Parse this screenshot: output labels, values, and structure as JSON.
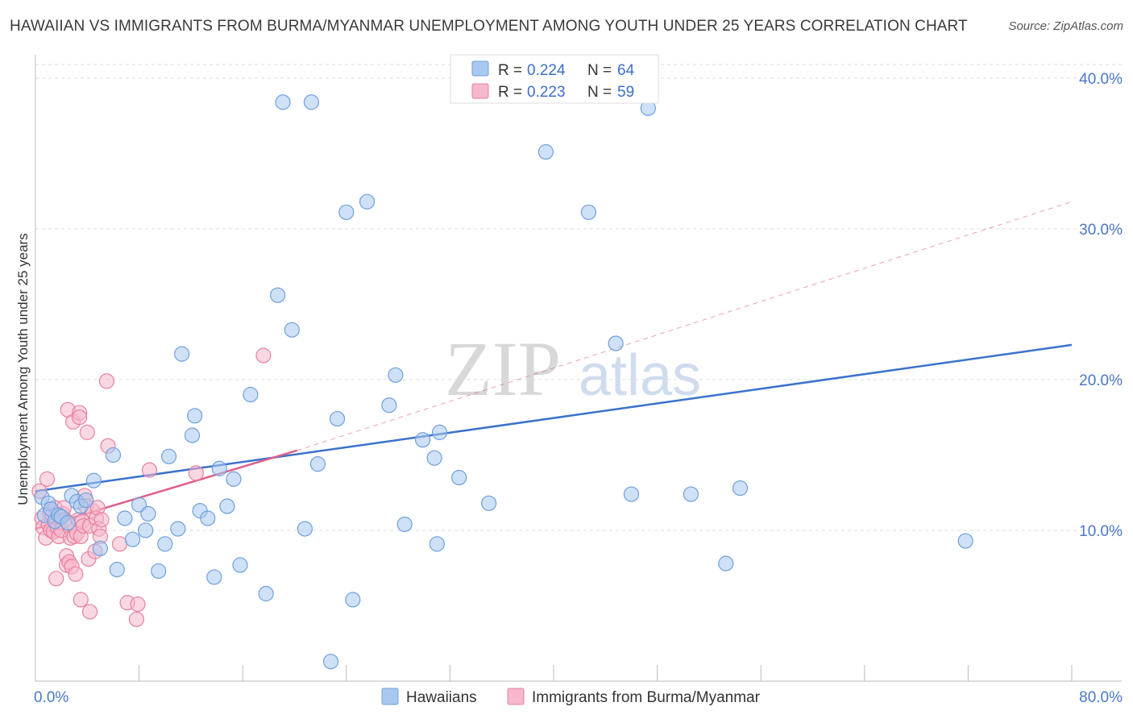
{
  "title": "HAWAIIAN VS IMMIGRANTS FROM BURMA/MYANMAR UNEMPLOYMENT AMONG YOUTH UNDER 25 YEARS CORRELATION CHART",
  "source": "Source: ZipAtlas.com",
  "watermark": {
    "zip": "ZIP",
    "atlas": "atlas"
  },
  "colors": {
    "hawaiians": "#a8c8f0",
    "hawaiians_stroke": "#6f9fdc",
    "burma": "#f5b8cc",
    "burma_stroke": "#e8809f",
    "trend_blue": "#3a72cc",
    "trend_pink": "#e05f8a",
    "grid": "#dddddd",
    "tick_text": "#4a78c8"
  },
  "legend": {
    "rows": [
      {
        "r_label": "R = ",
        "r_value": "0.224",
        "n_label": "N = ",
        "n_value": "64"
      },
      {
        "r_label": "R = ",
        "r_value": "0.223",
        "n_label": "N = ",
        "n_value": "59"
      }
    ]
  },
  "chart_data": {
    "type": "scatter",
    "title": "HAWAIIAN VS IMMIGRANTS FROM BURMA/MYANMAR UNEMPLOYMENT AMONG YOUTH UNDER 25 YEARS CORRELATION CHART",
    "xlabel": "",
    "ylabel": "Unemployment Among Youth under 25 years",
    "xlim": [
      0,
      80
    ],
    "ylim": [
      0,
      40.9
    ],
    "x_ticks": [
      {
        "value": 0,
        "label": "0.0%"
      },
      {
        "value": 80,
        "label": "80.0%"
      }
    ],
    "y_ticks": [
      {
        "value": 10,
        "label": "10.0%"
      },
      {
        "value": 20,
        "label": "20.0%"
      },
      {
        "value": 30,
        "label": "30.0%"
      },
      {
        "value": 40,
        "label": "40.0%"
      }
    ],
    "x_minor_ticks": [
      0,
      8,
      16,
      24,
      32,
      40,
      48,
      56,
      64,
      72,
      80
    ],
    "series": [
      {
        "name": "Hawaiians",
        "points": [
          [
            0.5,
            12.2
          ],
          [
            0.7,
            11.0
          ],
          [
            1.0,
            11.8
          ],
          [
            1.2,
            11.4
          ],
          [
            1.5,
            10.6
          ],
          [
            1.8,
            11.0
          ],
          [
            2.0,
            10.9
          ],
          [
            2.5,
            10.5
          ],
          [
            2.8,
            12.3
          ],
          [
            3.2,
            11.9
          ],
          [
            3.5,
            11.6
          ],
          [
            3.9,
            12.0
          ],
          [
            4.5,
            13.3
          ],
          [
            5.0,
            8.8
          ],
          [
            6.0,
            15.0
          ],
          [
            6.3,
            7.4
          ],
          [
            6.9,
            10.8
          ],
          [
            7.5,
            9.4
          ],
          [
            8.0,
            11.7
          ],
          [
            8.5,
            10.0
          ],
          [
            8.7,
            11.1
          ],
          [
            9.5,
            7.3
          ],
          [
            10.0,
            9.1
          ],
          [
            10.3,
            14.9
          ],
          [
            11.0,
            10.1
          ],
          [
            11.3,
            21.7
          ],
          [
            12.1,
            16.3
          ],
          [
            12.3,
            17.6
          ],
          [
            12.7,
            11.3
          ],
          [
            13.3,
            10.8
          ],
          [
            13.8,
            6.9
          ],
          [
            14.2,
            14.1
          ],
          [
            14.8,
            11.6
          ],
          [
            15.3,
            13.4
          ],
          [
            15.8,
            7.7
          ],
          [
            16.6,
            19.0
          ],
          [
            17.8,
            5.8
          ],
          [
            18.7,
            25.6
          ],
          [
            19.1,
            38.4
          ],
          [
            19.8,
            23.3
          ],
          [
            20.8,
            10.1
          ],
          [
            21.3,
            38.4
          ],
          [
            21.8,
            14.4
          ],
          [
            22.8,
            1.3
          ],
          [
            23.3,
            17.4
          ],
          [
            24.0,
            31.1
          ],
          [
            24.5,
            5.4
          ],
          [
            25.6,
            31.8
          ],
          [
            27.3,
            18.3
          ],
          [
            27.8,
            20.3
          ],
          [
            28.5,
            10.4
          ],
          [
            29.9,
            16.0
          ],
          [
            30.8,
            14.8
          ],
          [
            31.0,
            9.1
          ],
          [
            31.2,
            16.5
          ],
          [
            32.7,
            13.5
          ],
          [
            35.0,
            11.8
          ],
          [
            39.4,
            35.1
          ],
          [
            42.7,
            31.1
          ],
          [
            44.8,
            22.4
          ],
          [
            46.0,
            12.4
          ],
          [
            47.3,
            38.0
          ],
          [
            50.6,
            12.4
          ],
          [
            53.3,
            7.8
          ],
          [
            54.4,
            12.8
          ],
          [
            71.8,
            9.3
          ]
        ]
      },
      {
        "name": "Immigrants from Burma/Myanmar",
        "points": [
          [
            0.3,
            12.6
          ],
          [
            0.5,
            10.8
          ],
          [
            0.6,
            10.2
          ],
          [
            0.8,
            9.5
          ],
          [
            0.9,
            13.4
          ],
          [
            1.0,
            10.4
          ],
          [
            1.1,
            11.2
          ],
          [
            1.2,
            10.0
          ],
          [
            1.4,
            9.9
          ],
          [
            1.5,
            11.5
          ],
          [
            1.6,
            6.8
          ],
          [
            1.7,
            10.2
          ],
          [
            1.8,
            9.6
          ],
          [
            1.9,
            10.9
          ],
          [
            2.0,
            10.0
          ],
          [
            2.1,
            11.1
          ],
          [
            2.2,
            11.5
          ],
          [
            2.3,
            10.7
          ],
          [
            2.4,
            8.3
          ],
          [
            2.4,
            7.7
          ],
          [
            2.5,
            18.0
          ],
          [
            2.6,
            7.9
          ],
          [
            2.6,
            10.3
          ],
          [
            2.7,
            9.5
          ],
          [
            2.8,
            7.6
          ],
          [
            2.9,
            17.2
          ],
          [
            3.0,
            9.6
          ],
          [
            3.1,
            7.1
          ],
          [
            3.2,
            9.8
          ],
          [
            3.3,
            10.7
          ],
          [
            3.4,
            17.8
          ],
          [
            3.4,
            17.5
          ],
          [
            3.5,
            9.6
          ],
          [
            3.5,
            5.4
          ],
          [
            3.6,
            10.6
          ],
          [
            3.7,
            10.3
          ],
          [
            3.8,
            12.3
          ],
          [
            3.9,
            11.6
          ],
          [
            4.0,
            16.5
          ],
          [
            4.1,
            8.1
          ],
          [
            4.2,
            10.3
          ],
          [
            4.2,
            4.6
          ],
          [
            4.4,
            11.3
          ],
          [
            4.6,
            8.6
          ],
          [
            4.7,
            10.8
          ],
          [
            4.8,
            11.5
          ],
          [
            4.9,
            10.1
          ],
          [
            5.0,
            9.6
          ],
          [
            5.1,
            10.7
          ],
          [
            5.5,
            19.9
          ],
          [
            5.6,
            15.6
          ],
          [
            6.5,
            9.1
          ],
          [
            7.1,
            5.2
          ],
          [
            7.8,
            4.1
          ],
          [
            7.9,
            5.1
          ],
          [
            8.8,
            14.0
          ],
          [
            12.4,
            13.8
          ],
          [
            17.6,
            21.6
          ],
          [
            1.3,
            11.0
          ]
        ]
      }
    ],
    "trend_lines": [
      {
        "series": "Hawaiians",
        "x": [
          0,
          80
        ],
        "y": [
          12.6,
          22.3
        ],
        "style": "solid"
      },
      {
        "series": "Immigrants from Burma/Myanmar",
        "x": [
          0,
          20.2
        ],
        "y": [
          10.1,
          15.3
        ],
        "style": "solid"
      },
      {
        "series": "Immigrants from Burma/Myanmar",
        "x": [
          20.2,
          80
        ],
        "y": [
          15.3,
          31.8
        ],
        "style": "dashed"
      }
    ],
    "legend": [
      "Hawaiians",
      "Immigrants from Burma/Myanmar"
    ],
    "legend_position": "bottom",
    "grid": true
  }
}
